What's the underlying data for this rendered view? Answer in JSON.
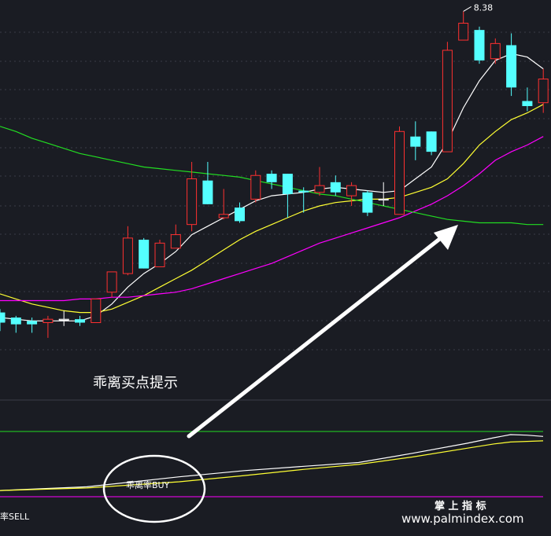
{
  "chart_data": [
    {
      "type": "candlestick",
      "panel": "price",
      "title": "",
      "max_label": "8.38",
      "grid": true,
      "candles": [
        {
          "o": 6.59,
          "c": 6.53,
          "h": 6.61,
          "l": 6.48,
          "dir": "down"
        },
        {
          "o": 6.56,
          "c": 6.52,
          "h": 6.57,
          "l": 6.47,
          "dir": "down"
        },
        {
          "o": 6.54,
          "c": 6.52,
          "h": 6.56,
          "l": 6.47,
          "dir": "down"
        },
        {
          "o": 6.53,
          "c": 6.55,
          "h": 6.57,
          "l": 6.44,
          "dir": "up"
        },
        {
          "o": 6.55,
          "c": 6.55,
          "h": 6.6,
          "l": 6.51,
          "dir": "flat"
        },
        {
          "o": 6.55,
          "c": 6.53,
          "h": 6.57,
          "l": 6.51,
          "dir": "down"
        },
        {
          "o": 6.53,
          "c": 6.67,
          "h": 6.67,
          "l": 6.53,
          "dir": "up"
        },
        {
          "o": 6.71,
          "c": 6.83,
          "h": 6.83,
          "l": 6.68,
          "dir": "up"
        },
        {
          "o": 6.82,
          "c": 7.03,
          "h": 7.1,
          "l": 6.81,
          "dir": "up"
        },
        {
          "o": 7.02,
          "c": 6.85,
          "h": 7.03,
          "l": 6.85,
          "dir": "down"
        },
        {
          "o": 6.86,
          "c": 7.0,
          "h": 7.02,
          "l": 6.86,
          "dir": "up"
        },
        {
          "o": 6.97,
          "c": 7.05,
          "h": 7.11,
          "l": 6.97,
          "dir": "up"
        },
        {
          "o": 7.11,
          "c": 7.38,
          "h": 7.48,
          "l": 7.07,
          "dir": "up"
        },
        {
          "o": 7.37,
          "c": 7.23,
          "h": 7.48,
          "l": 7.23,
          "dir": "down"
        },
        {
          "o": 7.15,
          "c": 7.17,
          "h": 7.32,
          "l": 7.14,
          "dir": "up"
        },
        {
          "o": 7.21,
          "c": 7.13,
          "h": 7.24,
          "l": 7.12,
          "dir": "down"
        },
        {
          "o": 7.26,
          "c": 7.4,
          "h": 7.43,
          "l": 7.24,
          "dir": "up"
        },
        {
          "o": 7.41,
          "c": 7.36,
          "h": 7.43,
          "l": 7.32,
          "dir": "down"
        },
        {
          "o": 7.41,
          "c": 7.29,
          "h": 7.41,
          "l": 7.15,
          "dir": "down"
        },
        {
          "o": 7.31,
          "c": 7.3,
          "h": 7.33,
          "l": 7.18,
          "dir": "down"
        },
        {
          "o": 7.3,
          "c": 7.34,
          "h": 7.45,
          "l": 7.28,
          "dir": "up"
        },
        {
          "o": 7.36,
          "c": 7.3,
          "h": 7.4,
          "l": 7.28,
          "dir": "down"
        },
        {
          "o": 7.28,
          "c": 7.34,
          "h": 7.36,
          "l": 7.22,
          "dir": "up"
        },
        {
          "o": 7.3,
          "c": 7.18,
          "h": 7.31,
          "l": 7.16,
          "dir": "down"
        },
        {
          "o": 7.26,
          "c": 7.26,
          "h": 7.36,
          "l": 7.22,
          "dir": "flat"
        },
        {
          "o": 7.17,
          "c": 7.66,
          "h": 7.69,
          "l": 7.17,
          "dir": "up"
        },
        {
          "o": 7.63,
          "c": 7.57,
          "h": 7.72,
          "l": 7.49,
          "dir": "down"
        },
        {
          "o": 7.66,
          "c": 7.54,
          "h": 7.66,
          "l": 7.52,
          "dir": "down"
        },
        {
          "o": 7.54,
          "c": 8.14,
          "h": 8.19,
          "l": 7.54,
          "dir": "up"
        },
        {
          "o": 8.2,
          "c": 8.3,
          "h": 8.37,
          "l": 8.2,
          "dir": "up"
        },
        {
          "o": 8.26,
          "c": 8.08,
          "h": 8.28,
          "l": 8.06,
          "dir": "down"
        },
        {
          "o": 8.09,
          "c": 8.18,
          "h": 8.21,
          "l": 8.06,
          "dir": "up"
        },
        {
          "o": 8.17,
          "c": 7.92,
          "h": 8.24,
          "l": 7.87,
          "dir": "down"
        },
        {
          "o": 7.84,
          "c": 7.81,
          "h": 7.92,
          "l": 7.78,
          "dir": "down"
        },
        {
          "o": 7.83,
          "c": 7.97,
          "h": 8.03,
          "l": 7.77,
          "dir": "up"
        }
      ],
      "series": [
        {
          "color": "#ffffff",
          "values": [
            6.56,
            6.55,
            6.54,
            6.54,
            6.54,
            6.54,
            6.57,
            6.64,
            6.74,
            6.82,
            6.88,
            6.95,
            7.05,
            7.1,
            7.15,
            7.2,
            7.25,
            7.28,
            7.29,
            7.3,
            7.32,
            7.33,
            7.32,
            7.31,
            7.3,
            7.31,
            7.38,
            7.45,
            7.6,
            7.8,
            7.96,
            8.08,
            8.12,
            8.1,
            8.03
          ]
        },
        {
          "color": "#ffff33",
          "values": [
            6.7,
            6.67,
            6.64,
            6.62,
            6.6,
            6.59,
            6.59,
            6.61,
            6.65,
            6.69,
            6.74,
            6.79,
            6.84,
            6.9,
            6.96,
            7.02,
            7.07,
            7.11,
            7.15,
            7.19,
            7.22,
            7.24,
            7.25,
            7.26,
            7.26,
            7.27,
            7.3,
            7.33,
            7.38,
            7.47,
            7.58,
            7.66,
            7.73,
            7.77,
            7.82
          ]
        },
        {
          "color": "#ff00ff",
          "values": [
            6.66,
            6.66,
            6.66,
            6.66,
            6.66,
            6.67,
            6.67,
            6.68,
            6.68,
            6.69,
            6.7,
            6.71,
            6.73,
            6.76,
            6.79,
            6.82,
            6.85,
            6.88,
            6.92,
            6.96,
            7.0,
            7.03,
            7.06,
            7.09,
            7.12,
            7.15,
            7.19,
            7.23,
            7.28,
            7.34,
            7.41,
            7.49,
            7.54,
            7.58,
            7.63
          ]
        },
        {
          "color": "#22dd22",
          "values": [
            7.69,
            7.66,
            7.62,
            7.59,
            7.56,
            7.53,
            7.51,
            7.49,
            7.47,
            7.45,
            7.44,
            7.43,
            7.42,
            7.41,
            7.4,
            7.39,
            7.37,
            7.35,
            7.33,
            7.31,
            7.29,
            7.28,
            7.26,
            7.24,
            7.22,
            7.2,
            7.18,
            7.16,
            7.14,
            7.13,
            7.12,
            7.12,
            7.12,
            7.11,
            7.11
          ]
        }
      ]
    },
    {
      "type": "line",
      "panel": "indicator",
      "title": "",
      "x_norm": [
        0,
        0.16,
        0.33,
        0.45,
        0.56,
        0.66,
        0.76,
        0.86,
        0.91,
        0.94,
        0.97,
        1
      ],
      "series": [
        {
          "color": "#ffffff",
          "values": [
            0.1,
            0.16,
            0.32,
            0.42,
            0.49,
            0.55,
            0.7,
            0.86,
            0.95,
            1.0,
            0.99,
            0.97
          ]
        },
        {
          "color": "#ffff33",
          "values": [
            0.1,
            0.14,
            0.24,
            0.34,
            0.44,
            0.52,
            0.64,
            0.78,
            0.85,
            0.88,
            0.89,
            0.9
          ]
        }
      ],
      "ref_lines": [
        {
          "color": "#22dd22",
          "value": 1.05
        },
        {
          "color": "#ff00ff",
          "value": 0.0
        }
      ]
    }
  ],
  "annotations": {
    "caption": "乖离买点提示",
    "buy_label": "乖离率BUY",
    "sell_label": "率SELL"
  },
  "watermark": {
    "title": "掌 上 指 标",
    "url": "www.palmindex.com"
  }
}
